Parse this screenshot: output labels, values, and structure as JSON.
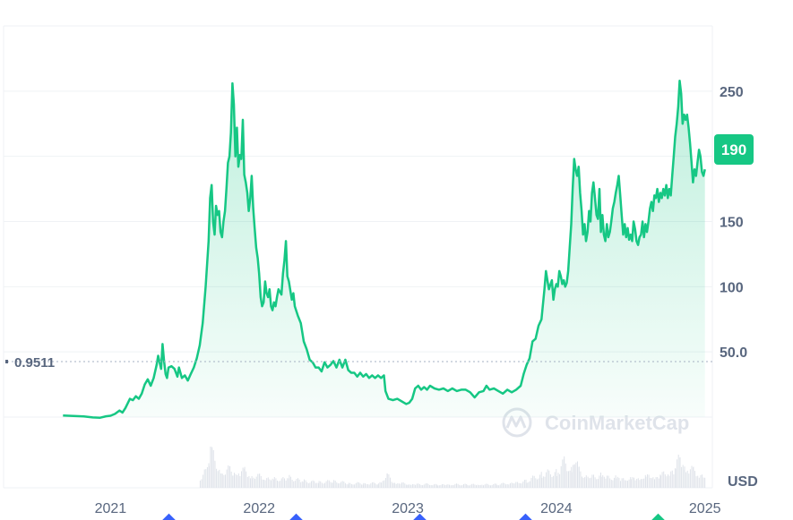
{
  "chart_data": {
    "type": "area",
    "currency": "USD",
    "watermark": "CoinMarketCap",
    "baseline_label": "0.9511",
    "current_price_label": "190",
    "y_ticks": [
      "250",
      "150",
      "100",
      "50.0"
    ],
    "ylim": [
      0,
      300
    ],
    "x_ticks": [
      "2021",
      "2022",
      "2023",
      "2024",
      "2025"
    ],
    "x_tick_values": [
      2021.0,
      2022.0,
      2023.0,
      2024.0,
      2025.0
    ],
    "xlim": [
      2020.28,
      2025.05
    ],
    "series": [
      {
        "values": [
          [
            2020.68,
            1.2
          ],
          [
            2020.75,
            0.8
          ],
          [
            2020.82,
            0.5
          ],
          [
            2020.88,
            -0.3
          ],
          [
            2020.93,
            -0.5
          ],
          [
            2020.97,
            0.6
          ],
          [
            2021.0,
            1.0
          ],
          [
            2021.03,
            2.5
          ],
          [
            2021.06,
            5
          ],
          [
            2021.08,
            3.5
          ],
          [
            2021.1,
            7
          ],
          [
            2021.13,
            14
          ],
          [
            2021.15,
            13
          ],
          [
            2021.17,
            16
          ],
          [
            2021.19,
            14
          ],
          [
            2021.21,
            18
          ],
          [
            2021.23,
            25
          ],
          [
            2021.25,
            29
          ],
          [
            2021.27,
            24
          ],
          [
            2021.29,
            30
          ],
          [
            2021.31,
            40
          ],
          [
            2021.32,
            47
          ],
          [
            2021.34,
            37
          ],
          [
            2021.35,
            56
          ],
          [
            2021.36,
            43
          ],
          [
            2021.37,
            33
          ],
          [
            2021.38,
            30
          ],
          [
            2021.39,
            38
          ],
          [
            2021.41,
            39
          ],
          [
            2021.43,
            37
          ],
          [
            2021.45,
            31
          ],
          [
            2021.46,
            38
          ],
          [
            2021.48,
            30
          ],
          [
            2021.5,
            32
          ],
          [
            2021.52,
            28
          ],
          [
            2021.54,
            33
          ],
          [
            2021.56,
            38
          ],
          [
            2021.58,
            45
          ],
          [
            2021.6,
            55
          ],
          [
            2021.62,
            72
          ],
          [
            2021.64,
            100
          ],
          [
            2021.66,
            135
          ],
          [
            2021.67,
            168
          ],
          [
            2021.68,
            178
          ],
          [
            2021.69,
            150
          ],
          [
            2021.7,
            140
          ],
          [
            2021.71,
            162
          ],
          [
            2021.72,
            155
          ],
          [
            2021.73,
            158
          ],
          [
            2021.74,
            142
          ],
          [
            2021.75,
            138
          ],
          [
            2021.76,
            150
          ],
          [
            2021.77,
            158
          ],
          [
            2021.78,
            175
          ],
          [
            2021.79,
            195
          ],
          [
            2021.8,
            200
          ],
          [
            2021.81,
            218
          ],
          [
            2021.82,
            256
          ],
          [
            2021.83,
            240
          ],
          [
            2021.84,
            200
          ],
          [
            2021.85,
            222
          ],
          [
            2021.86,
            192
          ],
          [
            2021.87,
            201
          ],
          [
            2021.88,
            198
          ],
          [
            2021.89,
            228
          ],
          [
            2021.9,
            186
          ],
          [
            2021.91,
            180
          ],
          [
            2021.92,
            172
          ],
          [
            2021.93,
            158
          ],
          [
            2021.94,
            168
          ],
          [
            2021.95,
            185
          ],
          [
            2021.96,
            160
          ],
          [
            2021.97,
            145
          ],
          [
            2021.98,
            130
          ],
          [
            2021.99,
            122
          ],
          [
            2022.0,
            110
          ],
          [
            2022.01,
            92
          ],
          [
            2022.02,
            85
          ],
          [
            2022.03,
            88
          ],
          [
            2022.04,
            104
          ],
          [
            2022.05,
            95
          ],
          [
            2022.06,
            92
          ],
          [
            2022.07,
            98
          ],
          [
            2022.08,
            85
          ],
          [
            2022.09,
            82
          ],
          [
            2022.1,
            88
          ],
          [
            2022.11,
            85
          ],
          [
            2022.12,
            92
          ],
          [
            2022.13,
            98
          ],
          [
            2022.15,
            94
          ],
          [
            2022.16,
            110
          ],
          [
            2022.17,
            120
          ],
          [
            2022.18,
            135
          ],
          [
            2022.19,
            108
          ],
          [
            2022.2,
            104
          ],
          [
            2022.22,
            90
          ],
          [
            2022.23,
            95
          ],
          [
            2022.24,
            85
          ],
          [
            2022.26,
            78
          ],
          [
            2022.28,
            72
          ],
          [
            2022.3,
            58
          ],
          [
            2022.32,
            52
          ],
          [
            2022.34,
            44
          ],
          [
            2022.36,
            42
          ],
          [
            2022.38,
            38
          ],
          [
            2022.4,
            38
          ],
          [
            2022.42,
            35
          ],
          [
            2022.44,
            42
          ],
          [
            2022.46,
            38
          ],
          [
            2022.48,
            40
          ],
          [
            2022.5,
            43
          ],
          [
            2022.52,
            38
          ],
          [
            2022.54,
            44
          ],
          [
            2022.56,
            38
          ],
          [
            2022.58,
            44
          ],
          [
            2022.6,
            36
          ],
          [
            2022.62,
            34
          ],
          [
            2022.64,
            34
          ],
          [
            2022.66,
            31
          ],
          [
            2022.68,
            34
          ],
          [
            2022.7,
            31
          ],
          [
            2022.72,
            33
          ],
          [
            2022.74,
            30
          ],
          [
            2022.76,
            32
          ],
          [
            2022.78,
            30
          ],
          [
            2022.8,
            32
          ],
          [
            2022.82,
            30
          ],
          [
            2022.84,
            32
          ],
          [
            2022.85,
            20
          ],
          [
            2022.87,
            14
          ],
          [
            2022.9,
            13
          ],
          [
            2022.93,
            14
          ],
          [
            2022.96,
            12
          ],
          [
            2022.99,
            10
          ],
          [
            2023.01,
            11
          ],
          [
            2023.03,
            14
          ],
          [
            2023.05,
            22
          ],
          [
            2023.07,
            24
          ],
          [
            2023.09,
            21
          ],
          [
            2023.11,
            23
          ],
          [
            2023.13,
            21
          ],
          [
            2023.15,
            24
          ],
          [
            2023.18,
            22
          ],
          [
            2023.21,
            21
          ],
          [
            2023.24,
            22
          ],
          [
            2023.27,
            20
          ],
          [
            2023.3,
            22
          ],
          [
            2023.33,
            20
          ],
          [
            2023.36,
            21
          ],
          [
            2023.39,
            21
          ],
          [
            2023.42,
            19
          ],
          [
            2023.45,
            15
          ],
          [
            2023.48,
            19
          ],
          [
            2023.51,
            20
          ],
          [
            2023.53,
            24
          ],
          [
            2023.55,
            21
          ],
          [
            2023.58,
            22
          ],
          [
            2023.61,
            20
          ],
          [
            2023.64,
            18
          ],
          [
            2023.67,
            21
          ],
          [
            2023.7,
            19
          ],
          [
            2023.73,
            21
          ],
          [
            2023.76,
            24
          ],
          [
            2023.78,
            33
          ],
          [
            2023.8,
            40
          ],
          [
            2023.82,
            45
          ],
          [
            2023.84,
            58
          ],
          [
            2023.86,
            60
          ],
          [
            2023.88,
            70
          ],
          [
            2023.9,
            75
          ],
          [
            2023.92,
            98
          ],
          [
            2023.93,
            112
          ],
          [
            2023.94,
            105
          ],
          [
            2023.95,
            98
          ],
          [
            2023.97,
            105
          ],
          [
            2023.98,
            90
          ],
          [
            2023.99,
            98
          ],
          [
            2024.0,
            102
          ],
          [
            2024.01,
            100
          ],
          [
            2024.02,
            112
          ],
          [
            2024.03,
            108
          ],
          [
            2024.04,
            102
          ],
          [
            2024.05,
            105
          ],
          [
            2024.06,
            100
          ],
          [
            2024.07,
            103
          ],
          [
            2024.08,
            112
          ],
          [
            2024.09,
            130
          ],
          [
            2024.1,
            148
          ],
          [
            2024.11,
            175
          ],
          [
            2024.12,
            198
          ],
          [
            2024.13,
            190
          ],
          [
            2024.14,
            185
          ],
          [
            2024.15,
            192
          ],
          [
            2024.16,
            172
          ],
          [
            2024.17,
            158
          ],
          [
            2024.18,
            140
          ],
          [
            2024.19,
            148
          ],
          [
            2024.2,
            135
          ],
          [
            2024.21,
            142
          ],
          [
            2024.22,
            158
          ],
          [
            2024.23,
            150
          ],
          [
            2024.24,
            172
          ],
          [
            2024.25,
            180
          ],
          [
            2024.26,
            168
          ],
          [
            2024.27,
            155
          ],
          [
            2024.28,
            152
          ],
          [
            2024.29,
            175
          ],
          [
            2024.3,
            142
          ],
          [
            2024.31,
            155
          ],
          [
            2024.32,
            140
          ],
          [
            2024.33,
            135
          ],
          [
            2024.34,
            148
          ],
          [
            2024.35,
            138
          ],
          [
            2024.36,
            142
          ],
          [
            2024.37,
            150
          ],
          [
            2024.38,
            160
          ],
          [
            2024.39,
            165
          ],
          [
            2024.4,
            172
          ],
          [
            2024.41,
            178
          ],
          [
            2024.42,
            185
          ],
          [
            2024.43,
            170
          ],
          [
            2024.44,
            155
          ],
          [
            2024.45,
            140
          ],
          [
            2024.46,
            148
          ],
          [
            2024.47,
            138
          ],
          [
            2024.48,
            145
          ],
          [
            2024.49,
            136
          ],
          [
            2024.5,
            140
          ],
          [
            2024.51,
            135
          ],
          [
            2024.52,
            150
          ],
          [
            2024.53,
            144
          ],
          [
            2024.54,
            135
          ],
          [
            2024.55,
            132
          ],
          [
            2024.56,
            138
          ],
          [
            2024.57,
            140
          ],
          [
            2024.58,
            150
          ],
          [
            2024.59,
            138
          ],
          [
            2024.6,
            148
          ],
          [
            2024.61,
            142
          ],
          [
            2024.62,
            150
          ],
          [
            2024.63,
            160
          ],
          [
            2024.64,
            165
          ],
          [
            2024.65,
            158
          ],
          [
            2024.66,
            170
          ],
          [
            2024.67,
            168
          ],
          [
            2024.68,
            175
          ],
          [
            2024.69,
            165
          ],
          [
            2024.7,
            172
          ],
          [
            2024.71,
            168
          ],
          [
            2024.72,
            175
          ],
          [
            2024.73,
            170
          ],
          [
            2024.74,
            178
          ],
          [
            2024.75,
            168
          ],
          [
            2024.76,
            175
          ],
          [
            2024.77,
            170
          ],
          [
            2024.78,
            185
          ],
          [
            2024.79,
            200
          ],
          [
            2024.8,
            215
          ],
          [
            2024.81,
            225
          ],
          [
            2024.82,
            238
          ],
          [
            2024.83,
            258
          ],
          [
            2024.84,
            248
          ],
          [
            2024.85,
            225
          ],
          [
            2024.86,
            232
          ],
          [
            2024.87,
            228
          ],
          [
            2024.88,
            232
          ],
          [
            2024.89,
            222
          ],
          [
            2024.9,
            210
          ],
          [
            2024.91,
            195
          ],
          [
            2024.92,
            180
          ],
          [
            2024.93,
            190
          ],
          [
            2024.94,
            185
          ],
          [
            2024.95,
            195
          ],
          [
            2024.96,
            205
          ],
          [
            2024.97,
            200
          ],
          [
            2024.98,
            188
          ],
          [
            2024.99,
            185
          ],
          [
            2025.0,
            190
          ]
        ]
      }
    ],
    "volume": [
      [
        2021.6,
        0.12
      ],
      [
        2021.66,
        0.55
      ],
      [
        2021.67,
        0.95
      ],
      [
        2021.68,
        0.7
      ],
      [
        2021.7,
        0.4
      ],
      [
        2021.75,
        0.3
      ],
      [
        2021.8,
        0.32
      ],
      [
        2021.82,
        0.28
      ],
      [
        2021.9,
        0.3
      ],
      [
        2021.95,
        0.22
      ],
      [
        2022.0,
        0.2
      ],
      [
        2022.1,
        0.15
      ],
      [
        2022.2,
        0.18
      ],
      [
        2022.3,
        0.12
      ],
      [
        2022.4,
        0.1
      ],
      [
        2022.5,
        0.12
      ],
      [
        2022.6,
        0.08
      ],
      [
        2022.7,
        0.08
      ],
      [
        2022.8,
        0.08
      ],
      [
        2022.86,
        0.22
      ],
      [
        2022.9,
        0.1
      ],
      [
        2023.0,
        0.07
      ],
      [
        2023.2,
        0.06
      ],
      [
        2023.4,
        0.06
      ],
      [
        2023.6,
        0.06
      ],
      [
        2023.8,
        0.12
      ],
      [
        2023.9,
        0.25
      ],
      [
        2024.0,
        0.28
      ],
      [
        2024.05,
        0.45
      ],
      [
        2024.1,
        0.35
      ],
      [
        2024.12,
        0.55
      ],
      [
        2024.15,
        0.3
      ],
      [
        2024.2,
        0.2
      ],
      [
        2024.3,
        0.22
      ],
      [
        2024.4,
        0.18
      ],
      [
        2024.5,
        0.16
      ],
      [
        2024.6,
        0.2
      ],
      [
        2024.7,
        0.22
      ],
      [
        2024.8,
        0.35
      ],
      [
        2024.83,
        0.55
      ],
      [
        2024.86,
        0.4
      ],
      [
        2024.92,
        0.3
      ],
      [
        2025.0,
        0.2
      ]
    ]
  }
}
